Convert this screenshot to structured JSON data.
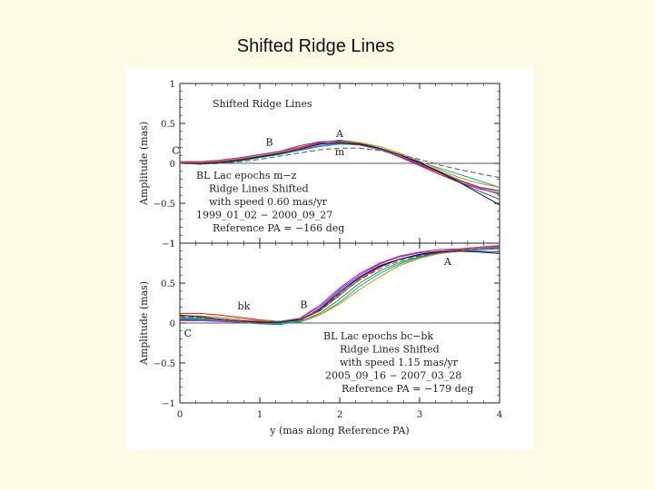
{
  "slide": {
    "title": "Shifted Ridge Lines"
  },
  "chart_data": [
    {
      "type": "line",
      "title": "Shifted Ridge Lines",
      "xlabel": "",
      "ylabel": "Amplitude (mas)",
      "xlim": [
        0,
        4
      ],
      "ylim": [
        -1,
        1
      ],
      "x_ticks": [
        "0",
        "1",
        "2",
        "3",
        "4"
      ],
      "y_ticks": [
        "1",
        "0.5",
        "0",
        "−0.5",
        "−1"
      ],
      "annotations": [
        {
          "text": "C",
          "x": -0.05,
          "y": 0.12
        },
        {
          "text": "B",
          "x": 1.12,
          "y": 0.22
        },
        {
          "text": "A",
          "x": 2.0,
          "y": 0.33
        },
        {
          "text": "m",
          "x": 2.0,
          "y": 0.1
        }
      ],
      "notes": [
        "BL Lac epochs m−z",
        "Ridge Lines Shifted",
        "with speed 0.60 mas/yr",
        "1999_01_02 − 2000_09_27",
        "Reference PA = −166 deg"
      ],
      "x": [
        0,
        0.25,
        0.5,
        0.75,
        1.0,
        1.25,
        1.5,
        1.75,
        2.0,
        2.25,
        2.5,
        2.75,
        3.0,
        3.25,
        3.5,
        3.75,
        4.0
      ],
      "series": [
        {
          "color": "#e0141c",
          "values": [
            0.02,
            0.02,
            0.03,
            0.06,
            0.1,
            0.15,
            0.22,
            0.27,
            0.28,
            0.25,
            0.18,
            0.08,
            -0.03,
            -0.14,
            -0.24,
            -0.32,
            -0.38
          ]
        },
        {
          "color": "#1f4fd0",
          "values": [
            0.01,
            0.0,
            0.02,
            0.05,
            0.09,
            0.13,
            0.2,
            0.26,
            0.29,
            0.26,
            0.19,
            0.1,
            -0.01,
            -0.12,
            -0.24,
            -0.35,
            -0.45
          ]
        },
        {
          "color": "#1e9a2a",
          "values": [
            0.0,
            -0.01,
            0.01,
            0.04,
            0.08,
            0.12,
            0.18,
            0.24,
            0.27,
            0.25,
            0.19,
            0.11,
            0.01,
            -0.1,
            -0.21,
            -0.3,
            -0.36
          ]
        },
        {
          "color": "#8a2be2",
          "values": [
            0.02,
            0.01,
            0.02,
            0.05,
            0.08,
            0.12,
            0.17,
            0.22,
            0.25,
            0.24,
            0.18,
            0.1,
            0.0,
            -0.11,
            -0.22,
            -0.31,
            -0.39
          ]
        },
        {
          "color": "#00aeb8",
          "values": [
            0.0,
            -0.01,
            0.0,
            0.03,
            0.07,
            0.11,
            0.16,
            0.21,
            0.24,
            0.23,
            0.18,
            0.1,
            0.02,
            -0.06,
            -0.14,
            -0.22,
            -0.3
          ]
        },
        {
          "color": "#e08a00",
          "values": [
            0.01,
            0.01,
            0.03,
            0.06,
            0.1,
            0.14,
            0.19,
            0.24,
            0.27,
            0.26,
            0.21,
            0.13,
            0.03,
            -0.08,
            -0.18,
            -0.25,
            -0.3
          ]
        },
        {
          "color": "#c41f9e",
          "values": [
            0.02,
            0.02,
            0.04,
            0.07,
            0.11,
            0.15,
            0.2,
            0.25,
            0.26,
            0.23,
            0.17,
            0.09,
            -0.02,
            -0.12,
            -0.22,
            -0.3,
            -0.34
          ]
        },
        {
          "color": "#111111",
          "values": [
            0.0,
            0.0,
            0.01,
            0.04,
            0.08,
            0.12,
            0.18,
            0.24,
            0.26,
            0.24,
            0.19,
            0.11,
            0.01,
            -0.11,
            -0.24,
            -0.38,
            -0.52
          ]
        },
        {
          "color": "#555555",
          "dashed": true,
          "values": [
            0.0,
            -0.01,
            0.0,
            0.02,
            0.05,
            0.09,
            0.13,
            0.17,
            0.19,
            0.19,
            0.16,
            0.11,
            0.05,
            -0.02,
            -0.08,
            -0.13,
            -0.18
          ]
        }
      ]
    },
    {
      "type": "line",
      "title": "",
      "xlabel": "y (mas along Reference PA)",
      "ylabel": "Amplitude (mas)",
      "xlim": [
        0,
        4
      ],
      "ylim": [
        -1,
        1
      ],
      "x_ticks": [
        "0",
        "1",
        "2",
        "3",
        "4"
      ],
      "y_ticks": [
        "1",
        "0.5",
        "0",
        "−0.5",
        "−1"
      ],
      "annotations": [
        {
          "text": "bk",
          "x": 0.8,
          "y": 0.17
        },
        {
          "text": "B",
          "x": 1.55,
          "y": 0.19
        },
        {
          "text": "A",
          "x": 3.35,
          "y": 0.73
        },
        {
          "text": "C",
          "x": 0.1,
          "y": -0.17
        }
      ],
      "notes": [
        "BL Lac epochs bc−bk",
        "Ridge Lines Shifted",
        "with speed 1.15 mas/yr",
        "2005_09_16 − 2007_03_28",
        "Reference PA = −179 deg"
      ],
      "x": [
        0,
        0.25,
        0.5,
        0.75,
        1.0,
        1.25,
        1.5,
        1.75,
        2.0,
        2.25,
        2.5,
        2.75,
        3.0,
        3.25,
        3.5,
        3.75,
        4.0
      ],
      "series": [
        {
          "color": "#e0141c",
          "values": [
            0.12,
            0.12,
            0.1,
            0.07,
            0.04,
            0.02,
            0.04,
            0.15,
            0.35,
            0.55,
            0.7,
            0.8,
            0.86,
            0.9,
            0.92,
            0.95,
            0.97
          ]
        },
        {
          "color": "#1f4fd0",
          "values": [
            0.04,
            0.04,
            0.03,
            0.01,
            -0.01,
            -0.02,
            0.03,
            0.18,
            0.4,
            0.58,
            0.72,
            0.8,
            0.85,
            0.88,
            0.9,
            0.9,
            0.89
          ]
        },
        {
          "color": "#1e9a2a",
          "values": [
            0.07,
            0.06,
            0.04,
            0.02,
            0.01,
            0.0,
            0.02,
            0.12,
            0.3,
            0.5,
            0.65,
            0.76,
            0.83,
            0.87,
            0.9,
            0.92,
            0.93
          ]
        },
        {
          "color": "#8a2be2",
          "values": [
            0.05,
            0.05,
            0.04,
            0.03,
            0.02,
            0.02,
            0.06,
            0.2,
            0.42,
            0.6,
            0.74,
            0.83,
            0.88,
            0.9,
            0.91,
            0.93,
            0.95
          ]
        },
        {
          "color": "#00aeb8",
          "values": [
            0.06,
            0.05,
            0.03,
            0.01,
            -0.01,
            -0.01,
            0.01,
            0.1,
            0.26,
            0.46,
            0.62,
            0.74,
            0.82,
            0.87,
            0.9,
            0.92,
            0.94
          ]
        },
        {
          "color": "#e08a00",
          "values": [
            0.09,
            0.09,
            0.07,
            0.05,
            0.03,
            0.02,
            0.03,
            0.1,
            0.24,
            0.42,
            0.58,
            0.72,
            0.81,
            0.87,
            0.91,
            0.94,
            0.96
          ]
        },
        {
          "color": "#c41f9e",
          "values": [
            0.03,
            0.03,
            0.02,
            0.01,
            0.0,
            0.01,
            0.06,
            0.22,
            0.44,
            0.62,
            0.75,
            0.84,
            0.89,
            0.92,
            0.93,
            0.95,
            0.96
          ]
        },
        {
          "color": "#111111",
          "values": [
            0.1,
            0.08,
            0.05,
            0.03,
            0.01,
            0.01,
            0.04,
            0.17,
            0.38,
            0.57,
            0.71,
            0.8,
            0.86,
            0.89,
            0.9,
            0.89,
            0.87
          ]
        },
        {
          "color": "#555555",
          "dashed": true,
          "values": [
            0.08,
            0.07,
            0.05,
            0.03,
            0.02,
            0.02,
            0.05,
            0.16,
            0.36,
            0.54,
            0.68,
            0.78,
            0.84,
            0.88,
            0.91,
            0.93,
            0.94
          ]
        }
      ]
    }
  ]
}
